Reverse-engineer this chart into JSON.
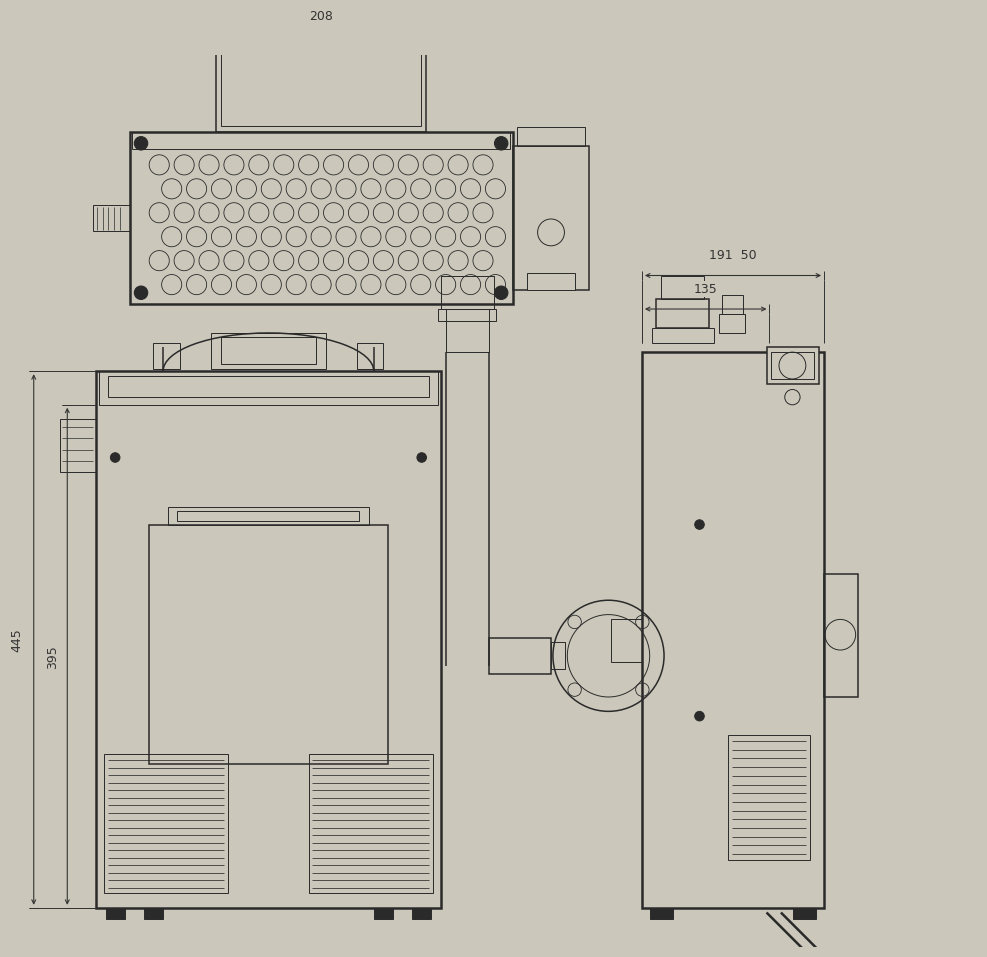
{
  "bg_color": "#cbc8bb",
  "line_color": "#2a2a2a",
  "lw_thin": 0.7,
  "lw_med": 1.1,
  "lw_thick": 1.8,
  "dim_208": "208",
  "dim_191_50": "191  50",
  "dim_135": "135",
  "dim_445": "445",
  "dim_395": "395",
  "font_size": 9,
  "figw": 10.0,
  "figh": 9.31
}
